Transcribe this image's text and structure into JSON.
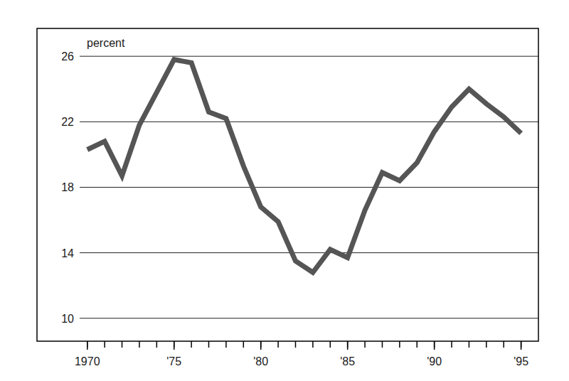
{
  "chart_data": {
    "type": "line",
    "y_label": "percent",
    "x": [
      1970,
      1971,
      1972,
      1973,
      1974,
      1975,
      1976,
      1977,
      1978,
      1979,
      1980,
      1981,
      1982,
      1983,
      1984,
      1985,
      1986,
      1987,
      1988,
      1989,
      1990,
      1991,
      1992,
      1993,
      1994,
      1995
    ],
    "values": [
      20.3,
      20.8,
      18.7,
      21.8,
      23.8,
      25.8,
      25.6,
      22.6,
      22.2,
      19.3,
      16.8,
      15.9,
      13.5,
      12.8,
      14.2,
      13.7,
      16.6,
      18.9,
      18.4,
      19.5,
      21.4,
      22.9,
      24.0,
      23.1,
      22.3,
      21.3
    ],
    "color": "#555555",
    "xlim": [
      1967.1,
      1996.0
    ],
    "xticks": [
      1970,
      {
        "value": 1975,
        "label": "'75"
      },
      {
        "value": 1980,
        "label": "'80"
      },
      {
        "value": 1985,
        "label": "'85"
      },
      {
        "value": 1990,
        "label": "'90"
      },
      {
        "value": 1995,
        "label": "'95"
      }
    ],
    "ylim": [
      8.6,
      27.7
    ],
    "yticks": [
      10,
      14,
      18,
      22,
      26
    ],
    "grid": true
  }
}
